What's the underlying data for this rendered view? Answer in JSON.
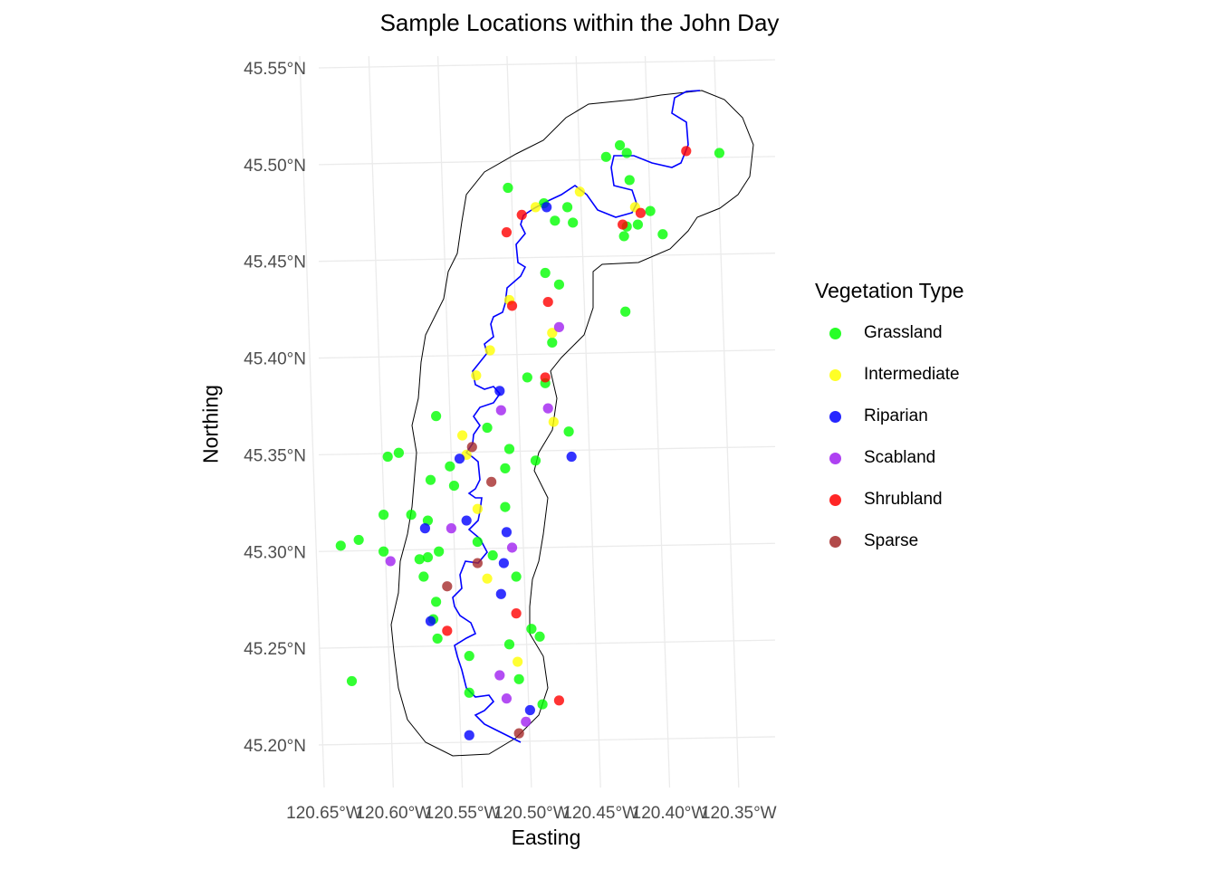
{
  "chart_data": {
    "type": "scatter",
    "title": "Sample Locations within the John Day",
    "xlabel": "Easting",
    "ylabel": "Northing",
    "xlim": [
      -120.65,
      -120.35
    ],
    "ylim": [
      45.2,
      45.55
    ],
    "grid": true,
    "legend_position": "right",
    "legend_title": "Vegetation Type",
    "x_ticks": [
      {
        "value": -120.65,
        "label": "120.65°W"
      },
      {
        "value": -120.6,
        "label": "120.60°W"
      },
      {
        "value": -120.55,
        "label": "120.55°W"
      },
      {
        "value": -120.5,
        "label": "120.50°W"
      },
      {
        "value": -120.45,
        "label": "120.45°W"
      },
      {
        "value": -120.4,
        "label": "120.40°W"
      },
      {
        "value": -120.35,
        "label": "120.35°W"
      }
    ],
    "y_ticks": [
      {
        "value": 45.55,
        "label": "45.55°N"
      },
      {
        "value": 45.5,
        "label": "45.50°N"
      },
      {
        "value": 45.45,
        "label": "45.45°N"
      },
      {
        "value": 45.4,
        "label": "45.40°N"
      },
      {
        "value": 45.35,
        "label": "45.35°N"
      },
      {
        "value": 45.3,
        "label": "45.30°N"
      },
      {
        "value": 45.25,
        "label": "45.25°N"
      },
      {
        "value": 45.2,
        "label": "45.20°N"
      }
    ],
    "layers": {
      "boundary_color": "#000000",
      "river_color": "#0000FF"
    },
    "series": [
      {
        "name": "Grassland",
        "color": "#00FF00",
        "points": [
          [
            -120.436,
            45.51
          ],
          [
            -120.431,
            45.506
          ],
          [
            -120.446,
            45.504
          ],
          [
            -120.364,
            45.506
          ],
          [
            -120.429,
            45.492
          ],
          [
            -120.517,
            45.488
          ],
          [
            -120.491,
            45.48
          ],
          [
            -120.474,
            45.478
          ],
          [
            -120.483,
            45.471
          ],
          [
            -120.47,
            45.47
          ],
          [
            -120.414,
            45.476
          ],
          [
            -120.431,
            45.468
          ],
          [
            -120.423,
            45.469
          ],
          [
            -120.433,
            45.463
          ],
          [
            -120.405,
            45.464
          ],
          [
            -120.49,
            45.444
          ],
          [
            -120.48,
            45.438
          ],
          [
            -120.432,
            45.424
          ],
          [
            -120.485,
            45.408
          ],
          [
            -120.503,
            45.39
          ],
          [
            -120.49,
            45.387
          ],
          [
            -120.473,
            45.362
          ],
          [
            -120.569,
            45.37
          ],
          [
            -120.532,
            45.364
          ],
          [
            -120.516,
            45.353
          ],
          [
            -120.497,
            45.347
          ],
          [
            -120.604,
            45.349
          ],
          [
            -120.596,
            45.351
          ],
          [
            -120.559,
            45.344
          ],
          [
            -120.519,
            45.343
          ],
          [
            -120.573,
            45.337
          ],
          [
            -120.556,
            45.334
          ],
          [
            -120.519,
            45.323
          ],
          [
            -120.607,
            45.319
          ],
          [
            -120.587,
            45.319
          ],
          [
            -120.575,
            45.316
          ],
          [
            -120.539,
            45.305
          ],
          [
            -120.638,
            45.303
          ],
          [
            -120.625,
            45.306
          ],
          [
            -120.607,
            45.3
          ],
          [
            -120.581,
            45.296
          ],
          [
            -120.575,
            45.297
          ],
          [
            -120.567,
            45.3
          ],
          [
            -120.528,
            45.298
          ],
          [
            -120.578,
            45.287
          ],
          [
            -120.511,
            45.287
          ],
          [
            -120.569,
            45.274
          ],
          [
            -120.571,
            45.265
          ],
          [
            -120.568,
            45.255
          ],
          [
            -120.5,
            45.26
          ],
          [
            -120.494,
            45.256
          ],
          [
            -120.516,
            45.252
          ],
          [
            -120.545,
            45.246
          ],
          [
            -120.63,
            45.233
          ],
          [
            -120.509,
            45.234
          ],
          [
            -120.545,
            45.227
          ],
          [
            -120.492,
            45.221
          ]
        ]
      },
      {
        "name": "Intermediate",
        "color": "#FFFF00",
        "points": [
          [
            -120.465,
            45.486
          ],
          [
            -120.497,
            45.478
          ],
          [
            -120.425,
            45.478
          ],
          [
            -120.516,
            45.43
          ],
          [
            -120.485,
            45.413
          ],
          [
            -120.53,
            45.404
          ],
          [
            -120.54,
            45.391
          ],
          [
            -120.484,
            45.367
          ],
          [
            -120.55,
            45.36
          ],
          [
            -120.547,
            45.35
          ],
          [
            -120.539,
            45.322
          ],
          [
            -120.532,
            45.286
          ],
          [
            -120.51,
            45.243
          ]
        ]
      },
      {
        "name": "Riparian",
        "color": "#0000FF",
        "points": [
          [
            -120.489,
            45.478
          ],
          [
            -120.523,
            45.383
          ],
          [
            -120.552,
            45.348
          ],
          [
            -120.471,
            45.349
          ],
          [
            -120.577,
            45.312
          ],
          [
            -120.547,
            45.316
          ],
          [
            -120.518,
            45.31
          ],
          [
            -120.52,
            45.294
          ],
          [
            -120.522,
            45.278
          ],
          [
            -120.573,
            45.264
          ],
          [
            -120.501,
            45.218
          ],
          [
            -120.545,
            45.205
          ]
        ]
      },
      {
        "name": "Scabland",
        "color": "#A020F0",
        "points": [
          [
            -120.48,
            45.416
          ],
          [
            -120.522,
            45.373
          ],
          [
            -120.488,
            45.374
          ],
          [
            -120.558,
            45.312
          ],
          [
            -120.514,
            45.302
          ],
          [
            -120.602,
            45.295
          ],
          [
            -120.523,
            45.236
          ],
          [
            -120.518,
            45.224
          ],
          [
            -120.504,
            45.212
          ]
        ]
      },
      {
        "name": "Shrubland",
        "color": "#FF0000",
        "points": [
          [
            -120.388,
            45.507
          ],
          [
            -120.507,
            45.474
          ],
          [
            -120.518,
            45.465
          ],
          [
            -120.421,
            45.475
          ],
          [
            -120.434,
            45.469
          ],
          [
            -120.514,
            45.427
          ],
          [
            -120.488,
            45.429
          ],
          [
            -120.49,
            45.39
          ],
          [
            -120.511,
            45.268
          ],
          [
            -120.561,
            45.259
          ],
          [
            -120.48,
            45.223
          ]
        ]
      },
      {
        "name": "Sparse",
        "color": "#A52A2A",
        "points": [
          [
            -120.543,
            45.354
          ],
          [
            -120.529,
            45.336
          ],
          [
            -120.539,
            45.294
          ],
          [
            -120.561,
            45.282
          ],
          [
            -120.509,
            45.206
          ]
        ]
      }
    ]
  }
}
